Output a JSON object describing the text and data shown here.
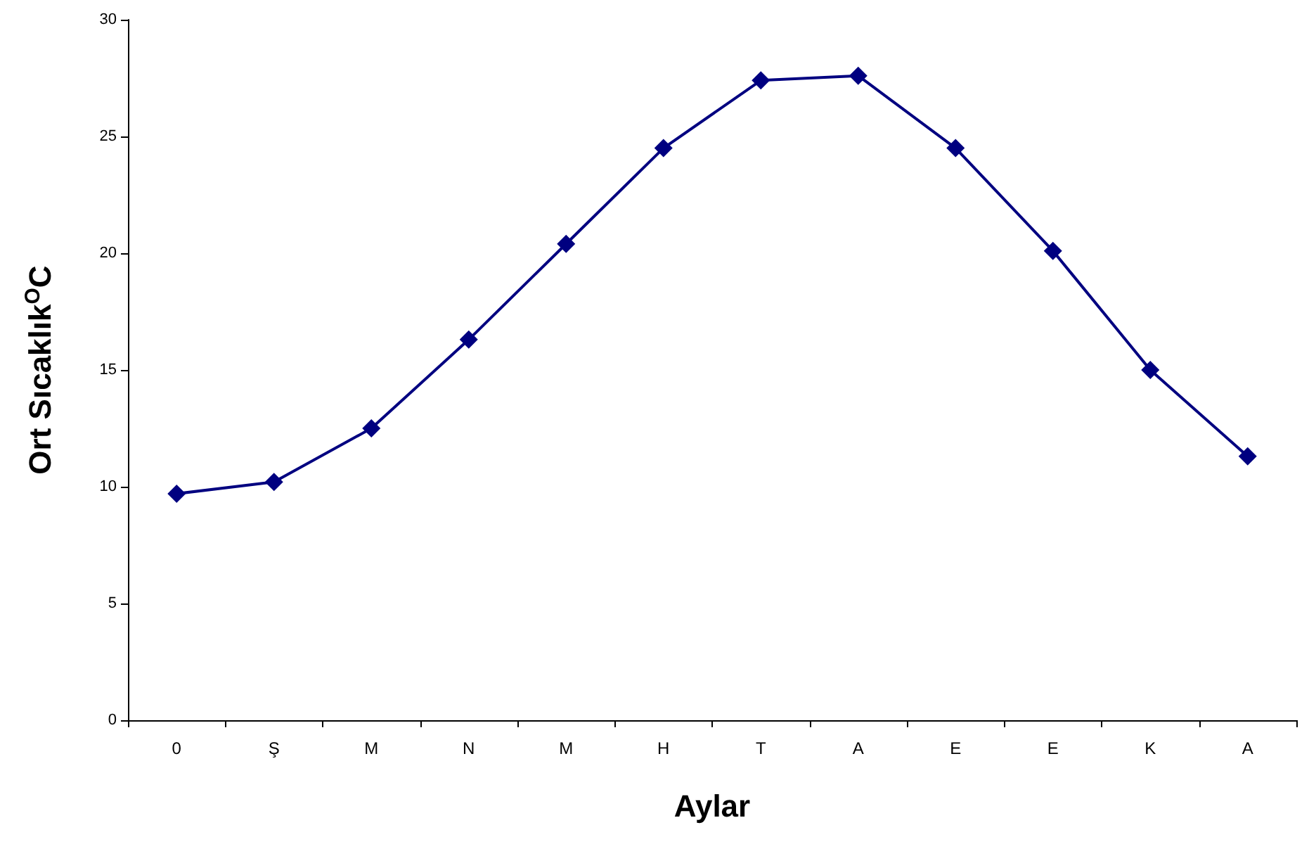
{
  "chart_data": {
    "type": "line",
    "xlabel": "Aylar",
    "ylabel": "Ort Sıcaklık$^{O}$C",
    "categories": [
      "0",
      "Ş",
      "M",
      "N",
      "M",
      "H",
      "T",
      "A",
      "E",
      "E",
      "K",
      "A"
    ],
    "series": [
      {
        "color": "#000080",
        "values": [
          9.7,
          10.2,
          12.5,
          16.3,
          20.4,
          24.5,
          27.4,
          27.6,
          24.5,
          20.1,
          15.0,
          11.3
        ]
      }
    ],
    "ylim": [
      0,
      30
    ],
    "yticks": [
      0,
      5,
      10,
      15,
      20,
      25,
      30
    ],
    "grid": false,
    "marker": "diamond",
    "line_style": "solid"
  }
}
